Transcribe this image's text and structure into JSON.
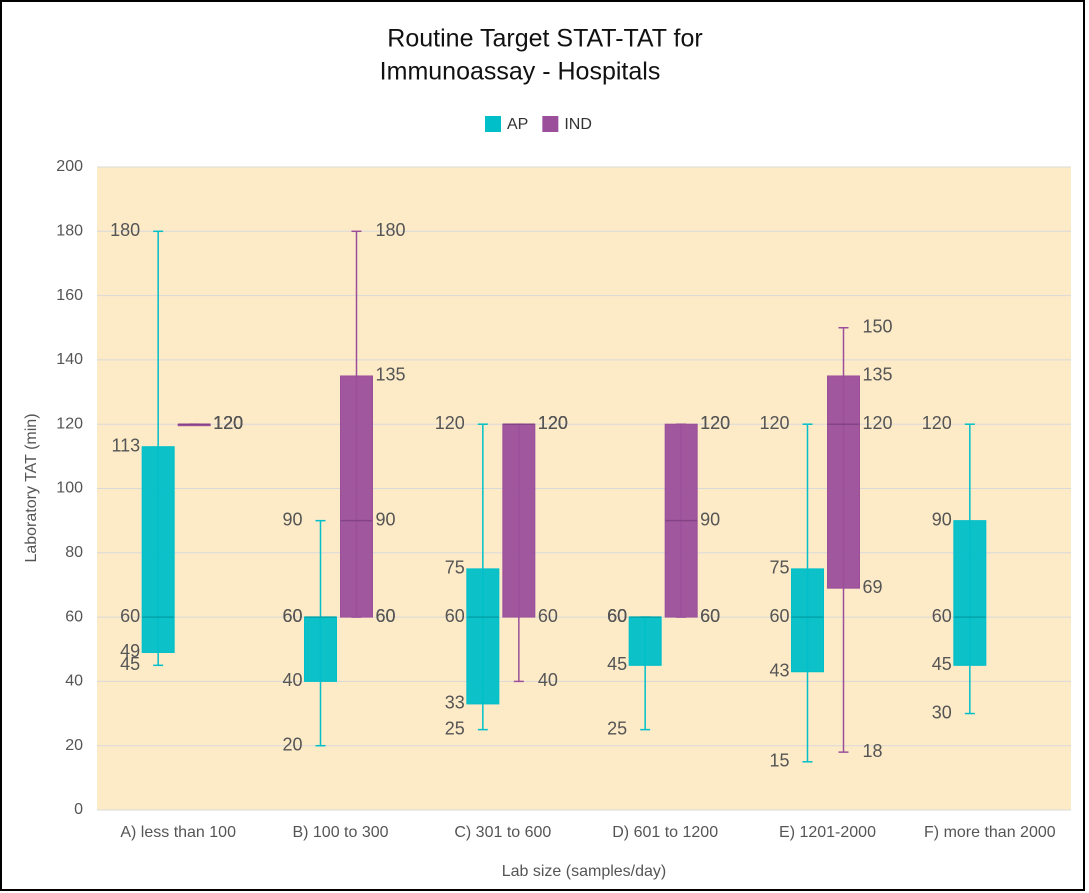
{
  "chart_data": {
    "type": "box",
    "title": [
      "Routine Target STAT-TAT for",
      "Immunoassay - Hospitals"
    ],
    "x_label": "Lab size (samples/day)",
    "y_label": "Laboratory TAT (min)",
    "categories": [
      "A) less than 100",
      "B) 100 to 300",
      "C) 301 to 600",
      "D) 601 to 1200",
      "E) 1201-2000",
      "F) more than 2000"
    ],
    "series": [
      {
        "name": "AP",
        "color": "#00bfc8",
        "values": [
          {
            "min": 45,
            "q1": 49,
            "median": 60,
            "q3": 113,
            "max": 180
          },
          {
            "min": 20,
            "q1": 40,
            "median": 60,
            "q3": 60,
            "max": 90
          },
          {
            "min": 25,
            "q1": 33,
            "median": 60,
            "q3": 75,
            "max": 120
          },
          {
            "min": 25,
            "q1": 45,
            "median": 60,
            "q3": 60,
            "max": 60
          },
          {
            "min": 15,
            "q1": 43,
            "median": 60,
            "q3": 75,
            "max": 120
          },
          {
            "min": 30,
            "q1": 45,
            "median": 60,
            "q3": 90,
            "max": 120
          }
        ]
      },
      {
        "name": "IND",
        "color": "#9b4f9b",
        "values": [
          {
            "min": 120,
            "q1": 120,
            "median": 120,
            "q3": 120,
            "max": 120
          },
          {
            "min": 60,
            "q1": 60,
            "median": 90,
            "q3": 135,
            "max": 180
          },
          {
            "min": 40,
            "q1": 60,
            "median": 120,
            "q3": 120,
            "max": 120
          },
          {
            "min": 60,
            "q1": 60,
            "median": 90,
            "q3": 120,
            "max": 120
          },
          {
            "min": 18,
            "q1": 69,
            "median": 120,
            "q3": 135,
            "max": 150
          },
          null
        ]
      }
    ],
    "ylim": [
      0,
      200
    ],
    "yticks": [
      0,
      20,
      40,
      60,
      80,
      100,
      120,
      140,
      160,
      180,
      200
    ],
    "grid": true,
    "legend": "top"
  }
}
